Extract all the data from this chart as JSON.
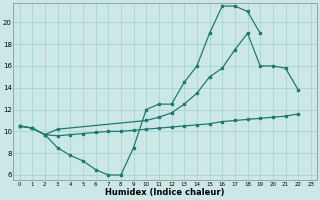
{
  "xlabel": "Humidex (Indice chaleur)",
  "xlim": [
    -0.5,
    23.5
  ],
  "ylim": [
    5.5,
    21.8
  ],
  "yticks": [
    6,
    8,
    10,
    12,
    14,
    16,
    18,
    20
  ],
  "xticks": [
    0,
    1,
    2,
    3,
    4,
    5,
    6,
    7,
    8,
    9,
    10,
    11,
    12,
    13,
    14,
    15,
    16,
    17,
    18,
    19,
    20,
    21,
    22,
    23
  ],
  "bg_color": "#cce8e6",
  "grid_color": "#aad6d2",
  "line_color": "#1d7a72",
  "series": [
    {
      "x": [
        0,
        1,
        2,
        3,
        4,
        5,
        6,
        7,
        8,
        9,
        10,
        11,
        12,
        13,
        14,
        15,
        16,
        17,
        18,
        19
      ],
      "y": [
        10.5,
        10.3,
        9.7,
        8.5,
        7.8,
        7.3,
        6.5,
        6.0,
        6.0,
        8.5,
        12.0,
        12.5,
        12.5,
        14.5,
        16.0,
        19.0,
        21.5,
        21.5,
        21.0,
        19.0
      ]
    },
    {
      "x": [
        0,
        1,
        2,
        3,
        10,
        11,
        12,
        13,
        14,
        15,
        16,
        17,
        18,
        19,
        20,
        21,
        22
      ],
      "y": [
        10.5,
        10.3,
        9.7,
        10.2,
        11.0,
        11.3,
        11.7,
        12.5,
        13.5,
        15.0,
        15.8,
        17.5,
        19.0,
        16.0,
        16.0,
        15.8,
        13.8
      ]
    },
    {
      "x": [
        0,
        1,
        2,
        3,
        4,
        5,
        6,
        7,
        8,
        9,
        10,
        11,
        12,
        13,
        14,
        15,
        16,
        17,
        18,
        19,
        20,
        21,
        22
      ],
      "y": [
        10.5,
        10.3,
        9.7,
        9.6,
        9.7,
        9.8,
        9.9,
        10.0,
        10.0,
        10.1,
        10.2,
        10.3,
        10.4,
        10.5,
        10.6,
        10.7,
        10.9,
        11.0,
        11.1,
        11.2,
        11.3,
        11.4,
        11.6
      ]
    }
  ]
}
